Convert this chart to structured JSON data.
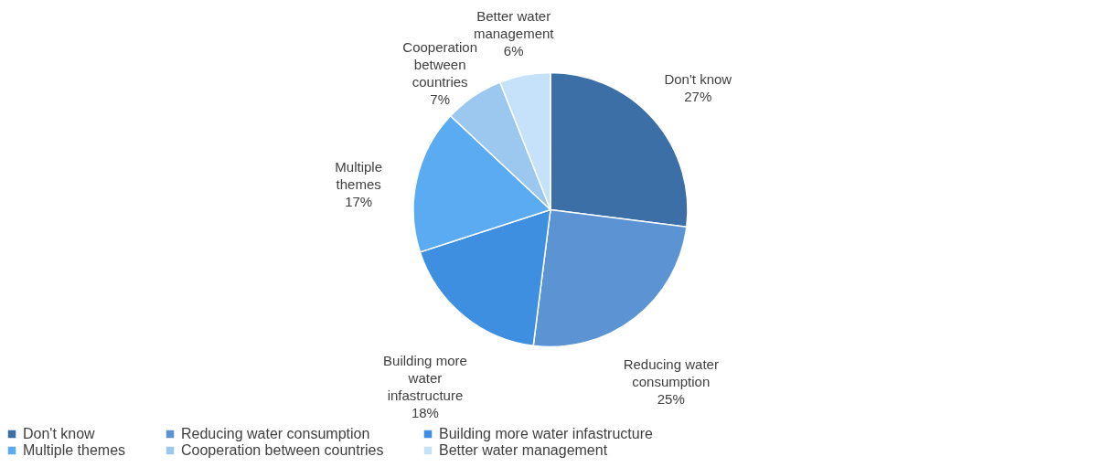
{
  "chart_data": {
    "type": "pie",
    "categories": [
      "Don't know",
      "Reducing water consumption",
      "Building more water infastructure",
      "Multiple themes",
      "Cooperation between countries",
      "Better water management"
    ],
    "values": [
      27,
      25,
      18,
      17,
      7,
      6
    ],
    "value_labels": [
      "27%",
      "25%",
      "18%",
      "17%",
      "7%",
      "6%"
    ],
    "colors": [
      "#3c6fa6",
      "#5b93d3",
      "#3f8fe0",
      "#5aabf2",
      "#9cc8f0",
      "#c6e2fb"
    ],
    "legend": "bottom"
  }
}
